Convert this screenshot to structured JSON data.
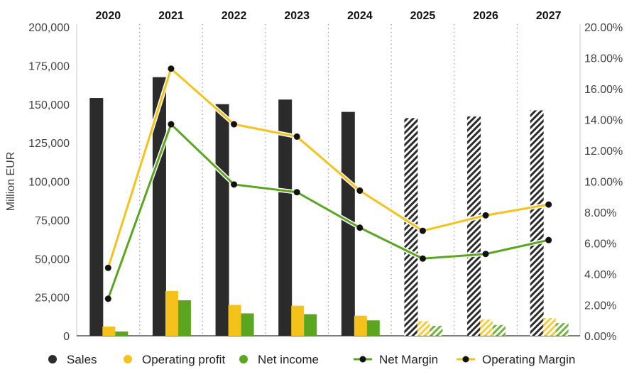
{
  "chart_data": {
    "type": "bar",
    "categories": [
      "2020",
      "2021",
      "2022",
      "2023",
      "2024",
      "2025",
      "2026",
      "2027"
    ],
    "forecast_from_index": 5,
    "ylabel": "Million EUR",
    "ylim": [
      0,
      200000
    ],
    "y_ticks": [
      "0",
      "25,000",
      "50,000",
      "75,000",
      "100,000",
      "125,000",
      "150,000",
      "175,000",
      "200,000"
    ],
    "y2lim": [
      0,
      20
    ],
    "y2_ticks": [
      "0.00%",
      "2.00%",
      "4.00%",
      "6.00%",
      "8.00%",
      "10.00%",
      "12.00%",
      "14.00%",
      "16.00%",
      "18.00%",
      "20.00%"
    ],
    "bar_series": [
      {
        "name": "Sales",
        "color": "#2b2b2b",
        "values": [
          154000,
          167500,
          150000,
          153000,
          145000,
          141000,
          142000,
          146000
        ]
      },
      {
        "name": "Operating profit",
        "color": "#f5c21b",
        "values": [
          6000,
          29000,
          20000,
          19500,
          13000,
          9500,
          10500,
          11500
        ]
      },
      {
        "name": "Net income",
        "color": "#5aa61e",
        "values": [
          2800,
          23000,
          14500,
          14000,
          10000,
          6500,
          7000,
          8200
        ]
      }
    ],
    "line_series": [
      {
        "name": "Net Margin",
        "color": "#5aa61e",
        "values": [
          2.4,
          13.7,
          9.8,
          9.3,
          7.0,
          5.0,
          5.3,
          6.2
        ]
      },
      {
        "name": "Operating Margin",
        "color": "#f5c21b",
        "values": [
          4.4,
          17.3,
          13.7,
          12.9,
          9.4,
          6.8,
          7.8,
          8.5
        ]
      }
    ],
    "legend": [
      {
        "label": "Sales",
        "kind": "dot",
        "color": "#2b2b2b"
      },
      {
        "label": "Operating profit",
        "kind": "dot",
        "color": "#f5c21b"
      },
      {
        "label": "Net income",
        "kind": "dot",
        "color": "#5aa61e"
      },
      {
        "label": "Net Margin",
        "kind": "line",
        "color": "#5aa61e"
      },
      {
        "label": "Operating Margin",
        "kind": "line",
        "color": "#f5c21b"
      }
    ],
    "legend_position": "bottom",
    "grid": "vertical dotted separators"
  }
}
